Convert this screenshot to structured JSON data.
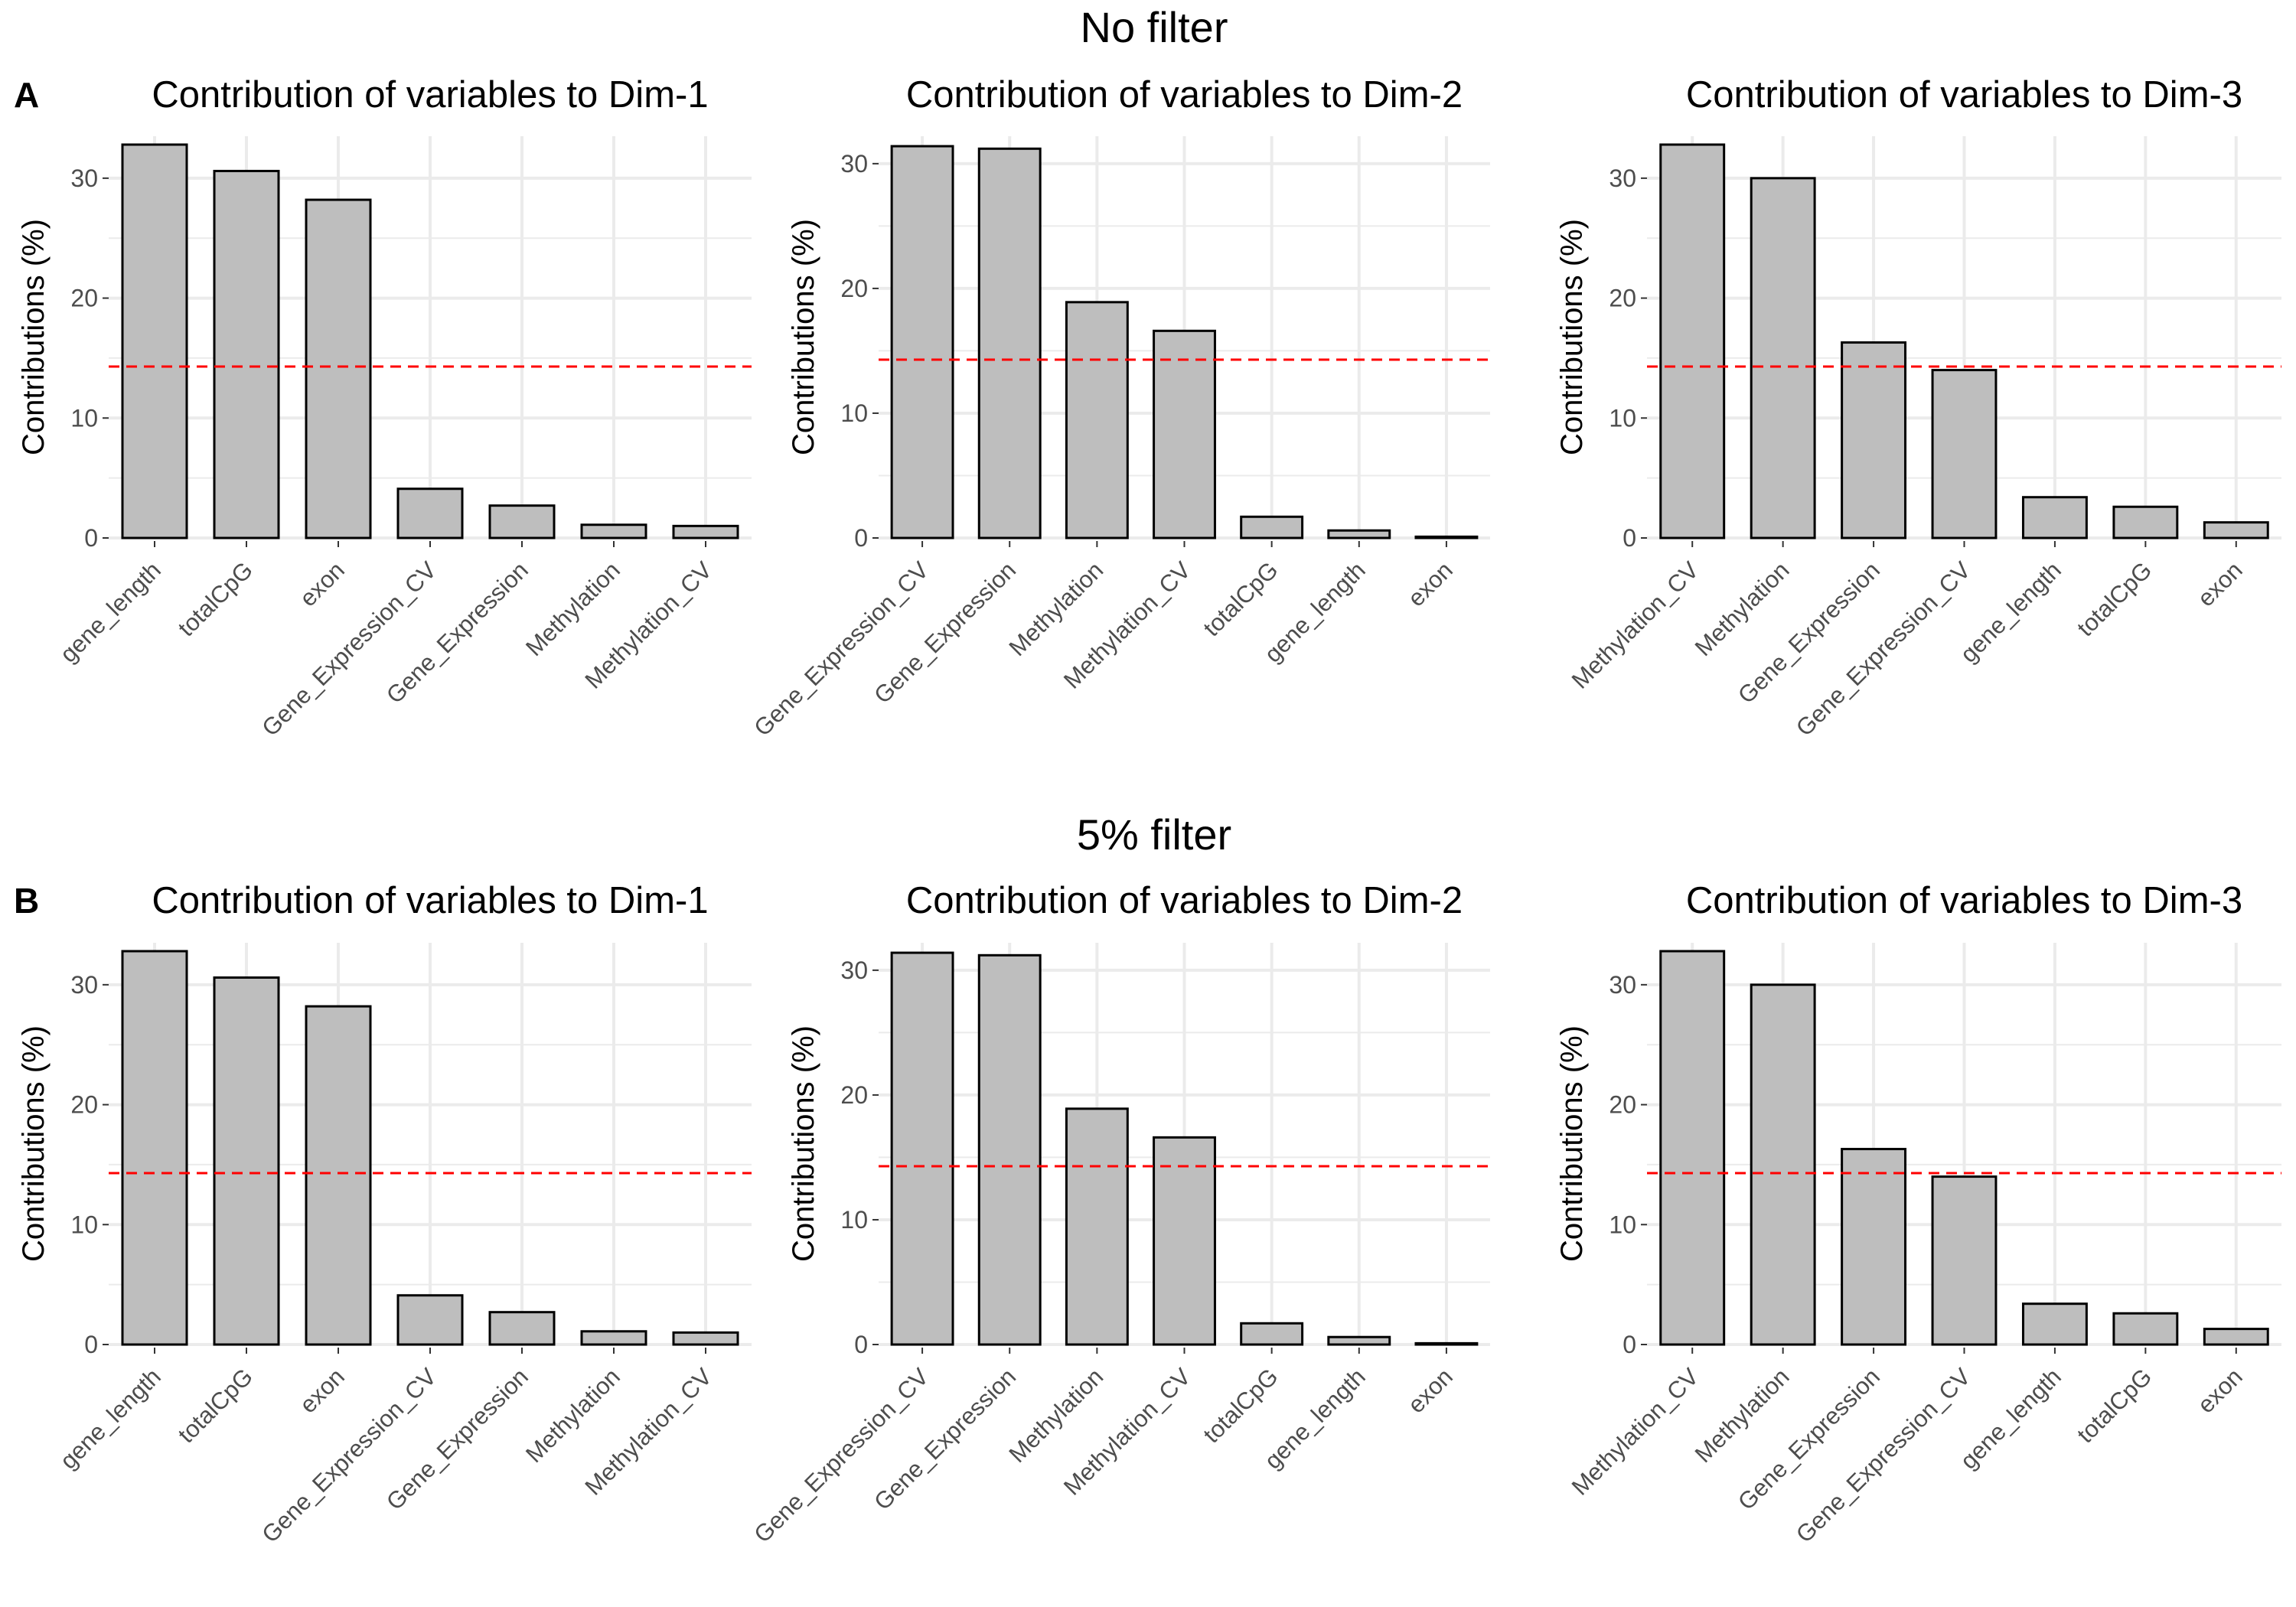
{
  "figure": {
    "row_titles": [
      "No filter",
      "5% filter"
    ],
    "panel_letters": [
      "A",
      "B"
    ],
    "colors": {
      "bar_fill": "#bebebe",
      "bar_stroke": "#000000",
      "reference_line": "#ff0000",
      "grid": "#ebebeb",
      "axis_text": "#4d4d4d",
      "title_text": "#000000"
    }
  },
  "chart_data": [
    {
      "type": "bar",
      "row": 0,
      "col": 0,
      "title": "Contribution of variables to Dim-1",
      "ylabel": "Contributions (%)",
      "xlabel": "",
      "categories": [
        "gene_length",
        "totalCpG",
        "exon",
        "Gene_Expression_CV",
        "Gene_Expression",
        "Methylation",
        "Methylation_CV"
      ],
      "values": [
        32.8,
        30.6,
        28.2,
        4.1,
        2.7,
        1.1,
        1.0
      ],
      "reference_line": 14.29,
      "ylim": [
        0,
        33.5
      ],
      "yticks": [
        0,
        10,
        20,
        30
      ],
      "grid": true,
      "legend": "none"
    },
    {
      "type": "bar",
      "row": 0,
      "col": 1,
      "title": "Contribution of variables to Dim-2",
      "ylabel": "Contributions (%)",
      "xlabel": "",
      "categories": [
        "Gene_Expression_CV",
        "Gene_Expression",
        "Methylation",
        "Methylation_CV",
        "totalCpG",
        "gene_length",
        "exon"
      ],
      "values": [
        31.4,
        31.2,
        18.9,
        16.6,
        1.7,
        0.6,
        0.1
      ],
      "reference_line": 14.29,
      "ylim": [
        0,
        32.2
      ],
      "yticks": [
        0,
        10,
        20,
        30
      ],
      "grid": true,
      "legend": "none"
    },
    {
      "type": "bar",
      "row": 0,
      "col": 2,
      "title": "Contribution of variables to Dim-3",
      "ylabel": "Contributions (%)",
      "xlabel": "",
      "categories": [
        "Methylation_CV",
        "Methylation",
        "Gene_Expression",
        "Gene_Expression_CV",
        "gene_length",
        "totalCpG",
        "exon"
      ],
      "values": [
        32.8,
        30.0,
        16.3,
        14.0,
        3.4,
        2.6,
        1.3
      ],
      "reference_line": 14.29,
      "ylim": [
        0,
        33.5
      ],
      "yticks": [
        0,
        10,
        20,
        30
      ],
      "grid": true,
      "legend": "none"
    },
    {
      "type": "bar",
      "row": 1,
      "col": 0,
      "title": "Contribution of variables to Dim-1",
      "ylabel": "Contributions (%)",
      "xlabel": "",
      "categories": [
        "gene_length",
        "totalCpG",
        "exon",
        "Gene_Expression_CV",
        "Gene_Expression",
        "Methylation",
        "Methylation_CV"
      ],
      "values": [
        32.8,
        30.6,
        28.2,
        4.1,
        2.7,
        1.1,
        1.0
      ],
      "reference_line": 14.29,
      "ylim": [
        0,
        33.5
      ],
      "yticks": [
        0,
        10,
        20,
        30
      ],
      "grid": true,
      "legend": "none"
    },
    {
      "type": "bar",
      "row": 1,
      "col": 1,
      "title": "Contribution of variables to Dim-2",
      "ylabel": "Contributions (%)",
      "xlabel": "",
      "categories": [
        "Gene_Expression_CV",
        "Gene_Expression",
        "Methylation",
        "Methylation_CV",
        "totalCpG",
        "gene_length",
        "exon"
      ],
      "values": [
        31.4,
        31.2,
        18.9,
        16.6,
        1.7,
        0.6,
        0.1
      ],
      "reference_line": 14.29,
      "ylim": [
        0,
        32.2
      ],
      "yticks": [
        0,
        10,
        20,
        30
      ],
      "grid": true,
      "legend": "none"
    },
    {
      "type": "bar",
      "row": 1,
      "col": 2,
      "title": "Contribution of variables to Dim-3",
      "ylabel": "Contributions (%)",
      "xlabel": "",
      "categories": [
        "Methylation_CV",
        "Methylation",
        "Gene_Expression",
        "Gene_Expression_CV",
        "gene_length",
        "totalCpG",
        "exon"
      ],
      "values": [
        32.8,
        30.0,
        16.3,
        14.0,
        3.4,
        2.6,
        1.3
      ],
      "reference_line": 14.29,
      "ylim": [
        0,
        33.5
      ],
      "yticks": [
        0,
        10,
        20,
        30
      ],
      "grid": true,
      "legend": "none"
    }
  ]
}
